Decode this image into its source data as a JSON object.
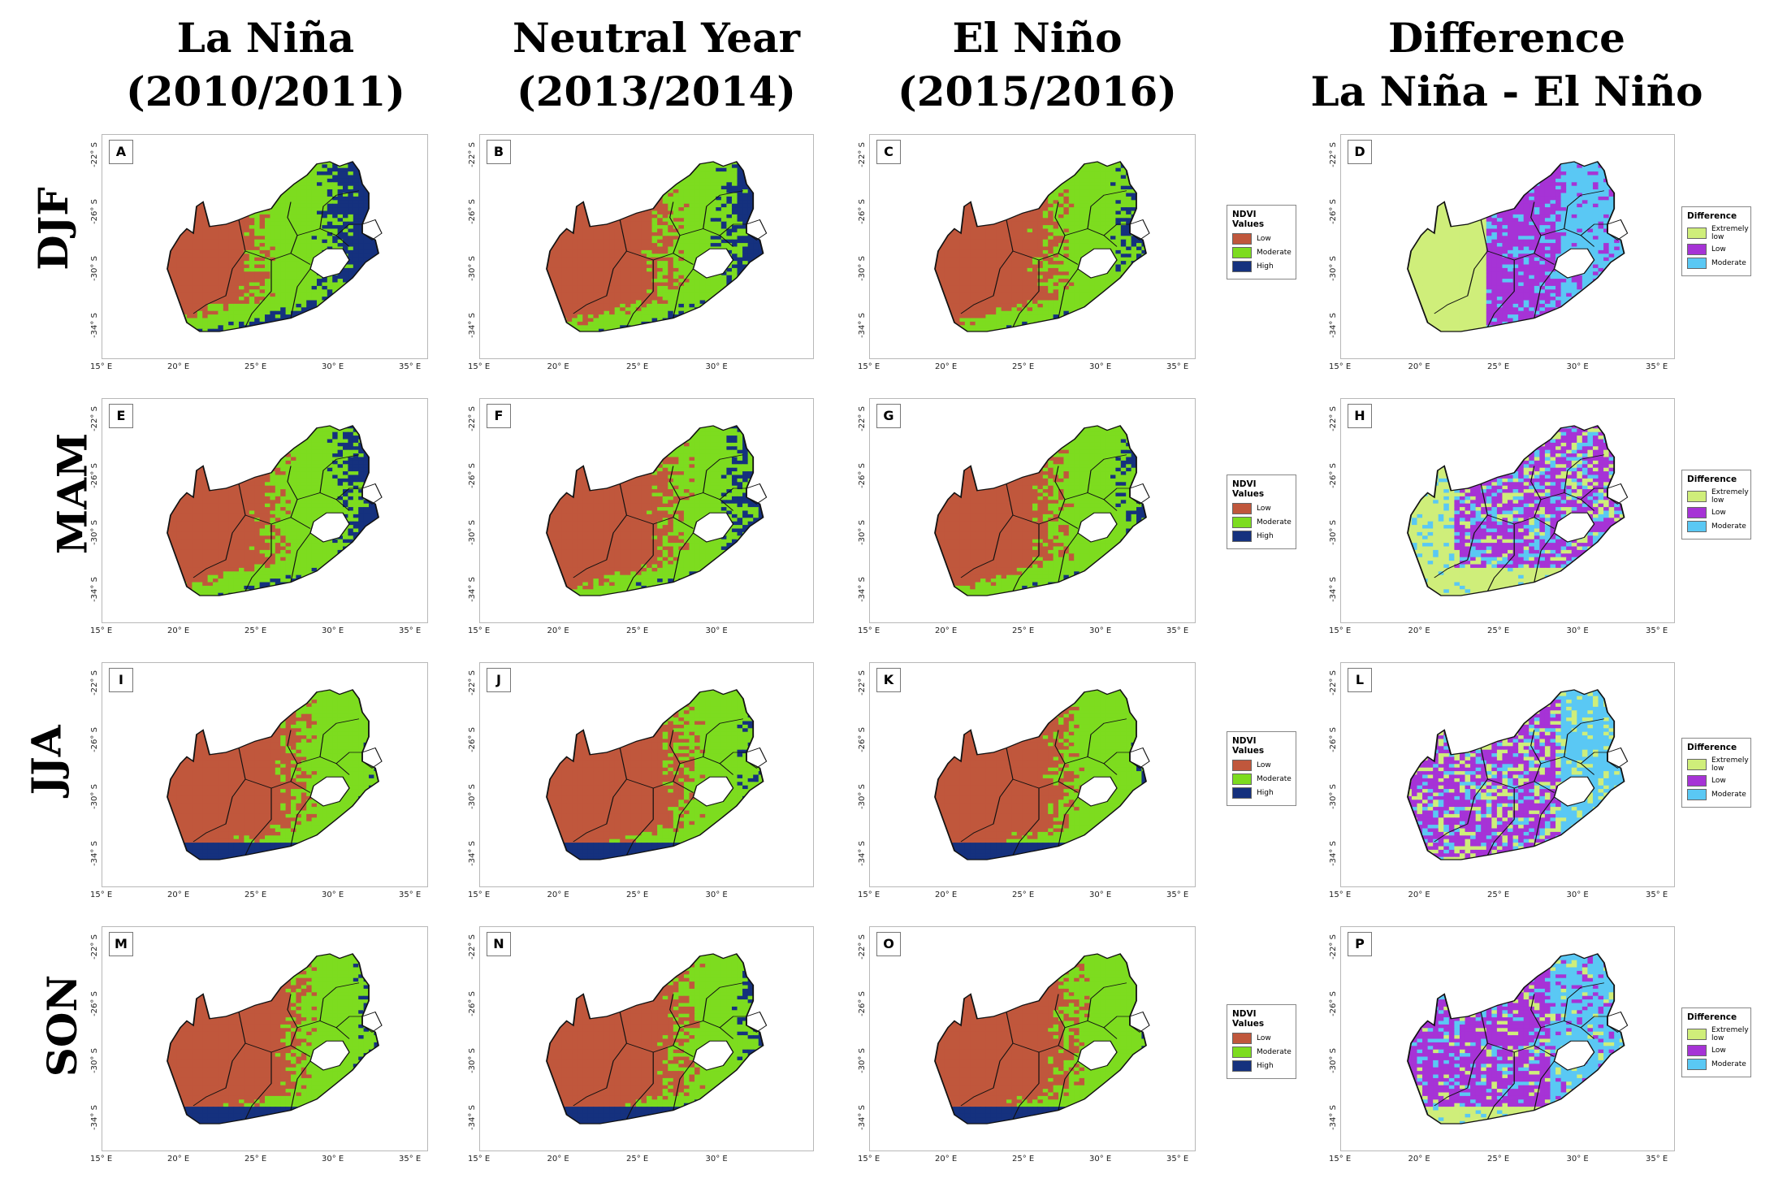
{
  "columns": [
    "La Niña\n(2010/2011)",
    "Neutral Year\n(2013/2014)",
    "El Niño\n(2015/2016)",
    "Difference\nLa Niña - El Niño"
  ],
  "rows": [
    "DJF",
    "MAM",
    "JJA",
    "SON"
  ],
  "panel_labels": [
    "A",
    "B",
    "C",
    "D",
    "E",
    "F",
    "G",
    "H",
    "I",
    "J",
    "K",
    "L",
    "M",
    "N",
    "O",
    "P"
  ],
  "lat_ticks": [
    "-22° S",
    "-26° S",
    "-30° S",
    "-34° S"
  ],
  "lon_ticks": [
    "15° E",
    "20° E",
    "25° E",
    "30° E",
    "35° E"
  ],
  "lon_ticks_short": [
    "15° E",
    "20° E",
    "25° E",
    "30° E"
  ],
  "ndvi_legend": {
    "title": "NDVI Values",
    "items": [
      {
        "label": "Low",
        "color": "#c0573c"
      },
      {
        "label": "Moderate",
        "color": "#7ddc1f"
      },
      {
        "label": "High",
        "color": "#15317e"
      }
    ]
  },
  "diff_legend": {
    "title": "Difference",
    "items": [
      {
        "label": "Extremely low",
        "color": "#cfee7a"
      },
      {
        "label": "Low",
        "color": "#a633d6"
      },
      {
        "label": "Moderate",
        "color": "#5ac8f4"
      }
    ]
  },
  "colors": {
    "lesotho": "#ffffff",
    "border": "#111111"
  }
}
